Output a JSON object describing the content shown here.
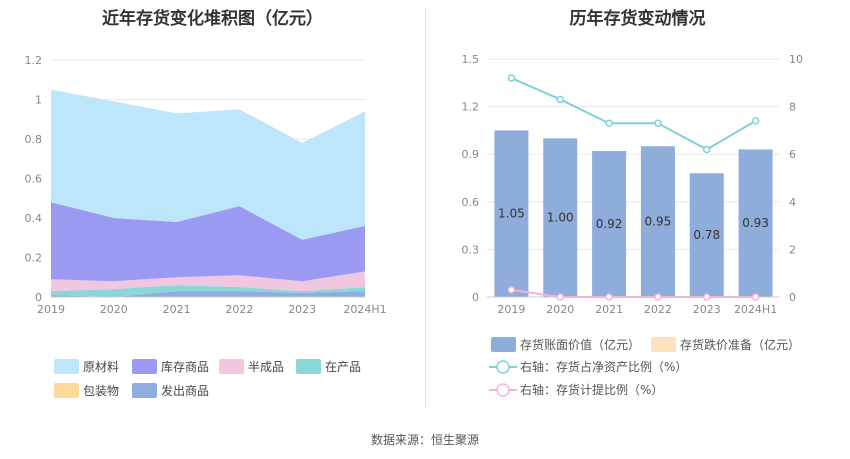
{
  "left_chart_title": "近年存货变化堆积图（亿元）",
  "right_chart_title": "历年存货变动情况",
  "source": "数据来源：恒生聚源",
  "chart_data": [
    {
      "type": "area",
      "stacked": true,
      "title": "近年存货变化堆积图（亿元）",
      "categories": [
        "2019",
        "2020",
        "2021",
        "2022",
        "2023",
        "2024H1"
      ],
      "ylim": [
        0,
        1.2
      ],
      "yticks": [
        "0",
        "0.2",
        "0.4",
        "0.6",
        "0.8",
        "1",
        "1.2"
      ],
      "grid": true,
      "legend_position": "bottom",
      "series": [
        {
          "name": "发出商品",
          "color": "#8daedf",
          "values": [
            0.01,
            0.0,
            0.03,
            0.03,
            0.02,
            0.03
          ]
        },
        {
          "name": "包装物",
          "color": "#fbd99c",
          "values": [
            0.0,
            0.0,
            0.0,
            0.0,
            0.0,
            0.0
          ]
        },
        {
          "name": "在产品",
          "color": "#8bd6d9",
          "values": [
            0.02,
            0.04,
            0.03,
            0.02,
            0.01,
            0.02
          ]
        },
        {
          "name": "半成品",
          "color": "#f1c6e1",
          "values": [
            0.06,
            0.04,
            0.04,
            0.06,
            0.05,
            0.08
          ]
        },
        {
          "name": "库存商品",
          "color": "#9b9af2",
          "values": [
            0.39,
            0.32,
            0.28,
            0.35,
            0.21,
            0.23
          ]
        },
        {
          "name": "原材料",
          "color": "#bde6fa",
          "values": [
            0.57,
            0.59,
            0.55,
            0.49,
            0.49,
            0.58
          ]
        }
      ],
      "legend_order": [
        "原材料",
        "库存商品",
        "半成品",
        "在产品",
        "包装物",
        "发出商品"
      ]
    },
    {
      "type": "bar",
      "title": "历年存货变动情况",
      "categories": [
        "2019",
        "2020",
        "2021",
        "2022",
        "2023",
        "2024H1"
      ],
      "ylim": [
        0,
        1.5
      ],
      "yticks": [
        "0",
        "0.3",
        "0.6",
        "0.9",
        "1.2",
        "1.5"
      ],
      "y2lim": [
        0,
        10
      ],
      "y2ticks": [
        "0",
        "2",
        "4",
        "6",
        "8",
        "10"
      ],
      "grid": true,
      "legend_position": "bottom",
      "series": [
        {
          "name": "存货账面价值（亿元）",
          "kind": "bar",
          "axis": "left",
          "color": "#8eaddb",
          "values": [
            1.05,
            1.0,
            0.92,
            0.95,
            0.78,
            0.93
          ],
          "labels": [
            "1.05",
            "1.00",
            "0.92",
            "0.95",
            "0.78",
            "0.93"
          ]
        },
        {
          "name": "存货跌价准备（亿元）",
          "kind": "bar",
          "axis": "left",
          "color": "#fde3bd",
          "values": [
            0,
            0,
            0,
            0,
            0,
            0
          ]
        },
        {
          "name": "右轴：存货占净资产比例（%）",
          "kind": "line",
          "axis": "right",
          "color": "#7fd3d8",
          "values": [
            9.2,
            8.3,
            7.3,
            7.3,
            6.2,
            7.4
          ]
        },
        {
          "name": "右轴：存货计提比例（%）",
          "kind": "line",
          "axis": "right",
          "color": "#f0b3d9",
          "values": [
            0.3,
            0.0,
            0.0,
            0.0,
            0.0,
            0.0
          ]
        }
      ]
    }
  ]
}
